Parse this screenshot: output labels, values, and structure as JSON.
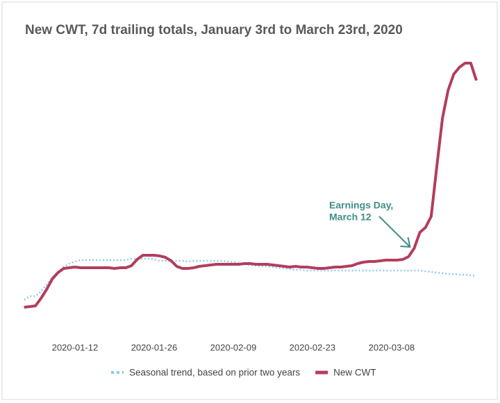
{
  "chart_data": {
    "type": "line",
    "title": "New CWT, 7d trailing totals, January 3rd to March 23rd, 2020",
    "x": [
      "2020-01-03",
      "2020-01-04",
      "2020-01-05",
      "2020-01-06",
      "2020-01-07",
      "2020-01-08",
      "2020-01-09",
      "2020-01-10",
      "2020-01-11",
      "2020-01-12",
      "2020-01-13",
      "2020-01-14",
      "2020-01-15",
      "2020-01-16",
      "2020-01-17",
      "2020-01-18",
      "2020-01-19",
      "2020-01-20",
      "2020-01-21",
      "2020-01-22",
      "2020-01-23",
      "2020-01-24",
      "2020-01-25",
      "2020-01-26",
      "2020-01-27",
      "2020-01-28",
      "2020-01-29",
      "2020-01-30",
      "2020-01-31",
      "2020-02-01",
      "2020-02-02",
      "2020-02-03",
      "2020-02-04",
      "2020-02-05",
      "2020-02-06",
      "2020-02-07",
      "2020-02-08",
      "2020-02-09",
      "2020-02-10",
      "2020-02-11",
      "2020-02-12",
      "2020-02-13",
      "2020-02-14",
      "2020-02-15",
      "2020-02-16",
      "2020-02-17",
      "2020-02-18",
      "2020-02-19",
      "2020-02-20",
      "2020-02-21",
      "2020-02-22",
      "2020-02-23",
      "2020-02-24",
      "2020-02-25",
      "2020-02-26",
      "2020-02-27",
      "2020-02-28",
      "2020-02-29",
      "2020-03-01",
      "2020-03-02",
      "2020-03-03",
      "2020-03-04",
      "2020-03-05",
      "2020-03-06",
      "2020-03-07",
      "2020-03-08",
      "2020-03-09",
      "2020-03-10",
      "2020-03-11",
      "2020-03-12",
      "2020-03-13",
      "2020-03-14",
      "2020-03-15",
      "2020-03-16",
      "2020-03-17",
      "2020-03-18",
      "2020-03-19",
      "2020-03-20",
      "2020-03-21",
      "2020-03-22",
      "2020-03-23"
    ],
    "xticks": [
      "2020-01-12",
      "2020-01-26",
      "2020-02-09",
      "2020-02-23",
      "2020-03-08"
    ],
    "ylim": [
      0,
      42
    ],
    "series": [
      {
        "name": "Seasonal trend, based on prior two years",
        "color": "#8ecbe8",
        "dotted": true,
        "values": [
          5.8,
          6.3,
          6.3,
          7.0,
          8.0,
          9.0,
          9.8,
          10.5,
          11.0,
          11.3,
          11.5,
          11.5,
          11.5,
          11.5,
          11.5,
          11.5,
          11.5,
          11.5,
          11.5,
          11.7,
          11.7,
          11.7,
          11.7,
          11.6,
          11.4,
          11.4,
          11.4,
          11.4,
          11.4,
          11.3,
          11.4,
          11.4,
          11.4,
          11.4,
          11.4,
          11.4,
          11.3,
          11.2,
          11.1,
          10.9,
          10.8,
          10.7,
          10.6,
          10.6,
          10.5,
          10.4,
          10.3,
          10.2,
          10.1,
          10.1,
          10.0,
          10.0,
          10.0,
          10.0,
          10.0,
          10.0,
          10.0,
          10.0,
          10.0,
          10.0,
          10.0,
          10.0,
          10.0,
          10.0,
          10.0,
          10.0,
          10.0,
          10.0,
          10.0,
          10.0,
          10.0,
          9.9,
          9.8,
          9.7,
          9.6,
          9.5,
          9.5,
          9.4,
          9.4,
          9.3,
          9.2
        ]
      },
      {
        "name": "New CWT",
        "color": "#b33d5c",
        "dotted": false,
        "values": [
          4.7,
          4.8,
          4.9,
          6.0,
          7.3,
          8.8,
          9.7,
          10.3,
          10.4,
          10.5,
          10.4,
          10.4,
          10.4,
          10.4,
          10.4,
          10.4,
          10.3,
          10.4,
          10.4,
          10.7,
          11.6,
          12.2,
          12.2,
          12.2,
          12.1,
          11.9,
          11.4,
          10.6,
          10.3,
          10.3,
          10.4,
          10.6,
          10.7,
          10.8,
          10.9,
          10.9,
          10.9,
          10.9,
          10.9,
          11.0,
          11.0,
          10.9,
          10.9,
          10.9,
          10.8,
          10.7,
          10.6,
          10.5,
          10.6,
          10.5,
          10.5,
          10.4,
          10.3,
          10.3,
          10.4,
          10.5,
          10.5,
          10.6,
          10.7,
          11.0,
          11.2,
          11.3,
          11.3,
          11.4,
          11.5,
          11.5,
          11.5,
          11.6,
          12.0,
          13.2,
          15.5,
          16.2,
          17.8,
          25.0,
          32.0,
          36.0,
          38.3,
          39.3,
          39.9,
          39.9,
          37.4
        ]
      }
    ],
    "annotation": {
      "text": [
        "Earnings Day,",
        "March 12"
      ],
      "x": "2020-03-12"
    }
  }
}
